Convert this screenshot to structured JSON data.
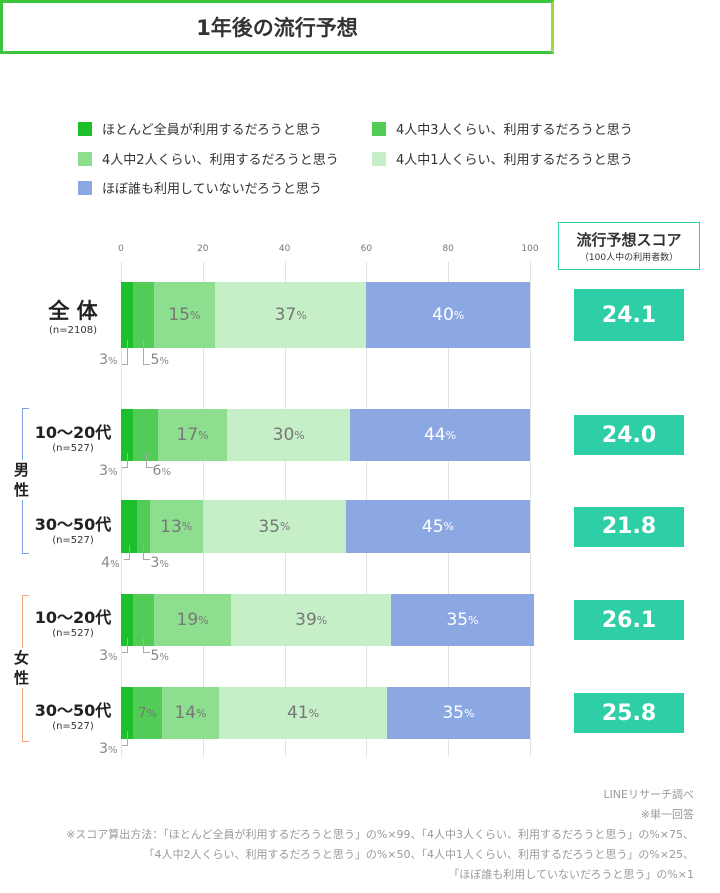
{
  "title": "1年後の流行予想",
  "chart_data": {
    "type": "bar",
    "stacked": true,
    "orientation": "horizontal",
    "xlim": [
      0,
      100
    ],
    "ticks": [
      "0",
      "20",
      "40",
      "60",
      "80",
      "100"
    ],
    "legend": [
      "ほとんど全員が利用するだろうと思う",
      "4人中3人くらい、利用するだろうと思う",
      "4人中2人くらい、利用するだろうと思う",
      "4人中1人くらい、利用するだろうと思う",
      "ほぼ誰も利用していないだろうと思う"
    ],
    "colors": [
      "#1dbf2a",
      "#52cc56",
      "#8ede8f",
      "#c6efc8",
      "#8ba8e3"
    ],
    "rows": [
      {
        "label": "全 体",
        "n": "(n=2108)",
        "values": [
          3,
          5,
          15,
          37,
          40
        ],
        "score": "24.1"
      },
      {
        "label": "10〜20代",
        "n": "(n=527)",
        "group": "男性",
        "values": [
          3,
          6,
          17,
          30,
          44
        ],
        "score": "24.0"
      },
      {
        "label": "30〜50代",
        "n": "(n=527)",
        "group": "男性",
        "values": [
          4,
          3,
          13,
          35,
          45
        ],
        "score": "21.8"
      },
      {
        "label": "10〜20代",
        "n": "(n=527)",
        "group": "女性",
        "values": [
          3,
          5,
          19,
          39,
          35
        ],
        "score": "26.1"
      },
      {
        "label": "30〜50代",
        "n": "(n=527)",
        "group": "女性",
        "values": [
          3,
          7,
          14,
          41,
          35
        ],
        "score": "25.8"
      }
    ],
    "groups": [
      {
        "label": "男\n性",
        "color": "#7b9fe0"
      },
      {
        "label": "女\n性",
        "color": "#f2a27a"
      }
    ],
    "pct": "%"
  },
  "score_header": {
    "title": "流行予想スコア",
    "sub": "（100人中の利用者数）"
  },
  "notes": [
    "LINEリサーチ調べ",
    "※単一回答",
    "※スコア算出方法：「ほとんど全員が利用するだろうと思う」の%×99、「4人中3人くらい、利用するだろうと思う」の%×75、",
    "「4人中2人くらい、利用するだろうと思う」の%×50、「4人中1人くらい、利用するだろうと思う」の%×25、",
    "「ほぼ誰も利用していないだろうと思う」の%×1"
  ]
}
